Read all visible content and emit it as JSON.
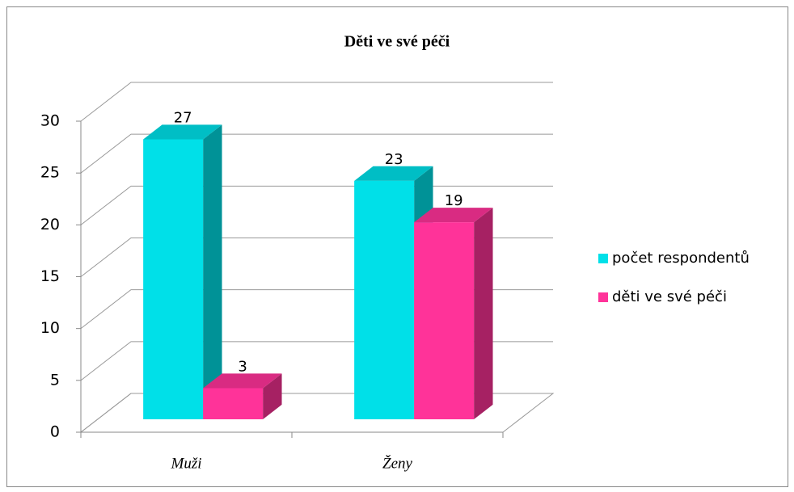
{
  "chart_data": {
    "type": "bar",
    "title": "Děti ve své péči",
    "categories": [
      "Muži",
      "Ženy"
    ],
    "series": [
      {
        "name": "počet respondentů",
        "color": "#00e0e8",
        "values": [
          27,
          23
        ]
      },
      {
        "name": "děti ve své péči",
        "color": "#ff3399",
        "values": [
          3,
          19
        ]
      }
    ],
    "ylim": [
      0,
      30
    ],
    "yticks": [
      0,
      5,
      10,
      15,
      20,
      25,
      30
    ],
    "grid": true,
    "legend": "right",
    "data_labels": true
  }
}
